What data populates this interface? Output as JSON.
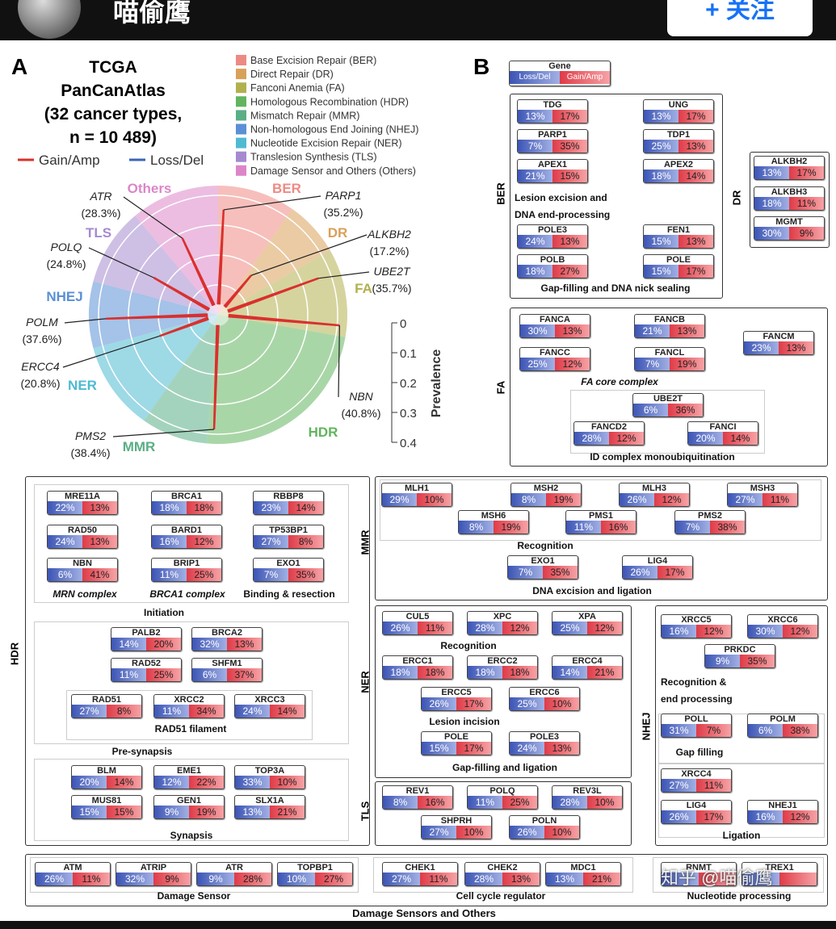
{
  "header": {
    "name": "喵偷鹰",
    "button": "+ 关注"
  },
  "panel_a": {
    "label": "A",
    "title": [
      "TCGA",
      "PanCanAtlas",
      "(32 cancer types,",
      "n = 10 489)"
    ],
    "lines": [
      {
        "name": "Gain/Amp",
        "color": "#d9302e"
      },
      {
        "name": "Loss/Del",
        "color": "#3b63b8"
      }
    ],
    "categories": [
      {
        "name": "Base Excision Repair (BER)",
        "short": "BER",
        "color": "#ee8a84"
      },
      {
        "name": "Direct Repair (DR)",
        "short": "DR",
        "color": "#d8a15a"
      },
      {
        "name": "Fanconi Anemia (FA)",
        "short": "FA",
        "color": "#b2b04e"
      },
      {
        "name": "Homologous Recombination (HDR)",
        "short": "HDR",
        "color": "#62b45e"
      },
      {
        "name": "Mismatch Repair (MMR)",
        "short": "MMR",
        "color": "#5aae86"
      },
      {
        "name": "Non-homologous End Joining (NHEJ)",
        "short": "NHEJ",
        "color": "#5b8fd6"
      },
      {
        "name": "Nucleotide Excision Repair (NER)",
        "short": "NER",
        "color": "#4fbad2"
      },
      {
        "name": "Translesion Synthesis (TLS)",
        "short": "TLS",
        "color": "#a58ad0"
      },
      {
        "name": "Damage Sensor and Others (Others)",
        "short": "Others",
        "color": "#dc86c8"
      }
    ],
    "axis_label": "Prevalence",
    "ylim": [
      0,
      0.4
    ],
    "yticks": [
      0,
      0.1,
      0.2,
      0.3,
      0.4
    ],
    "annotations": [
      {
        "gene": "ATR",
        "value": 0.283,
        "label": "(28.3%)"
      },
      {
        "gene": "PARP1",
        "value": 0.352,
        "label": "(35.2%)"
      },
      {
        "gene": "ALKBH2",
        "value": 0.172,
        "label": "(17.2%)"
      },
      {
        "gene": "UBE2T",
        "value": 0.357,
        "label": "(35.7%)"
      },
      {
        "gene": "POLQ",
        "value": 0.248,
        "label": "(24.8%)"
      },
      {
        "gene": "POLM",
        "value": 0.376,
        "label": "(37.6%)"
      },
      {
        "gene": "ERCC4",
        "value": 0.208,
        "label": "(20.8%)"
      },
      {
        "gene": "NBN",
        "value": 0.408,
        "label": "(40.8%)"
      },
      {
        "gene": "PMS2",
        "value": 0.384,
        "label": "(38.4%)"
      }
    ]
  },
  "panel_b": {
    "label": "B",
    "key": {
      "title": "Gene",
      "loss": "Loss/Del",
      "gain": "Gain/Amp"
    },
    "groups": {
      "ber": {
        "label": "BER",
        "genes": [
          [
            "TDG",
            "13%",
            "17%"
          ],
          [
            "UNG",
            "13%",
            "17%"
          ],
          [
            "PARP1",
            "7%",
            "35%"
          ],
          [
            "TDP1",
            "25%",
            "13%"
          ],
          [
            "APEX1",
            "21%",
            "15%"
          ],
          [
            "APEX2",
            "18%",
            "14%"
          ],
          [
            "POLE3",
            "24%",
            "13%"
          ],
          [
            "FEN1",
            "15%",
            "13%"
          ],
          [
            "POLB",
            "18%",
            "27%"
          ],
          [
            "POLE",
            "15%",
            "17%"
          ]
        ],
        "captions": [
          "Lesion excision and DNA end-processing",
          "Gap-filling and DNA nick sealing"
        ]
      },
      "dr": {
        "label": "DR",
        "genes": [
          [
            "ALKBH2",
            "13%",
            "17%"
          ],
          [
            "ALKBH3",
            "18%",
            "11%"
          ],
          [
            "MGMT",
            "30%",
            "9%"
          ]
        ]
      },
      "fa": {
        "label": "FA",
        "genes": [
          [
            "FANCA",
            "30%",
            "13%"
          ],
          [
            "FANCB",
            "21%",
            "13%"
          ],
          [
            "FANCM",
            "23%",
            "13%"
          ],
          [
            "FANCC",
            "25%",
            "12%"
          ],
          [
            "FANCL",
            "7%",
            "19%"
          ],
          [
            "UBE2T",
            "6%",
            "36%"
          ],
          [
            "FANCD2",
            "28%",
            "12%"
          ],
          [
            "FANCI",
            "20%",
            "14%"
          ]
        ],
        "captions": [
          "FA core complex",
          "ID complex monoubiquitination"
        ]
      },
      "hdr": {
        "label": "HDR",
        "genes": [
          [
            "MRE11A",
            "22%",
            "13%"
          ],
          [
            "BRCA1",
            "18%",
            "18%"
          ],
          [
            "RBBP8",
            "23%",
            "14%"
          ],
          [
            "RAD50",
            "24%",
            "13%"
          ],
          [
            "BARD1",
            "16%",
            "12%"
          ],
          [
            "TP53BP1",
            "27%",
            "8%"
          ],
          [
            "NBN",
            "6%",
            "41%"
          ],
          [
            "BRIP1",
            "11%",
            "25%"
          ],
          [
            "EXO1",
            "7%",
            "35%"
          ],
          [
            "PALB2",
            "14%",
            "20%"
          ],
          [
            "BRCA2",
            "32%",
            "13%"
          ],
          [
            "RAD52",
            "11%",
            "25%"
          ],
          [
            "SHFM1",
            "6%",
            "37%"
          ],
          [
            "RAD51",
            "27%",
            "8%"
          ],
          [
            "XRCC2",
            "11%",
            "34%"
          ],
          [
            "XRCC3",
            "24%",
            "14%"
          ],
          [
            "BLM",
            "20%",
            "14%"
          ],
          [
            "EME1",
            "12%",
            "22%"
          ],
          [
            "TOP3A",
            "33%",
            "10%"
          ],
          [
            "MUS81",
            "15%",
            "15%"
          ],
          [
            "GEN1",
            "9%",
            "19%"
          ],
          [
            "SLX1A",
            "13%",
            "21%"
          ]
        ],
        "captions": [
          "MRN complex",
          "BRCA1 complex",
          "Binding & resection",
          "Initiation",
          "RAD51 filament",
          "Pre-synapsis",
          "Synapsis"
        ]
      },
      "mmr": {
        "label": "MMR",
        "genes": [
          [
            "MLH1",
            "29%",
            "10%"
          ],
          [
            "MSH2",
            "8%",
            "19%"
          ],
          [
            "MLH3",
            "26%",
            "12%"
          ],
          [
            "MSH3",
            "27%",
            "11%"
          ],
          [
            "MSH6",
            "8%",
            "19%"
          ],
          [
            "PMS1",
            "11%",
            "16%"
          ],
          [
            "PMS2",
            "7%",
            "38%"
          ],
          [
            "EXO1",
            "7%",
            "35%"
          ],
          [
            "LIG4",
            "26%",
            "17%"
          ]
        ],
        "captions": [
          "Recognition",
          "DNA excision and ligation"
        ]
      },
      "ner": {
        "label": "NER",
        "genes": [
          [
            "CUL5",
            "26%",
            "11%"
          ],
          [
            "XPC",
            "28%",
            "12%"
          ],
          [
            "XPA",
            "25%",
            "12%"
          ],
          [
            "ERCC1",
            "18%",
            "18%"
          ],
          [
            "ERCC2",
            "18%",
            "18%"
          ],
          [
            "ERCC4",
            "14%",
            "21%"
          ],
          [
            "ERCC5",
            "26%",
            "17%"
          ],
          [
            "ERCC6",
            "25%",
            "10%"
          ],
          [
            "POLE",
            "15%",
            "17%"
          ],
          [
            "POLE3",
            "24%",
            "13%"
          ]
        ],
        "captions": [
          "Recognition",
          "Lesion incision",
          "Gap-filling and ligation"
        ]
      },
      "tls": {
        "label": "TLS",
        "genes": [
          [
            "REV1",
            "8%",
            "16%"
          ],
          [
            "POLQ",
            "11%",
            "25%"
          ],
          [
            "REV3L",
            "28%",
            "10%"
          ],
          [
            "SHPRH",
            "27%",
            "10%"
          ],
          [
            "POLN",
            "26%",
            "10%"
          ]
        ]
      },
      "nhej": {
        "label": "NHEJ",
        "genes": [
          [
            "XRCC5",
            "16%",
            "12%"
          ],
          [
            "XRCC6",
            "30%",
            "12%"
          ],
          [
            "PRKDC",
            "9%",
            "35%"
          ],
          [
            "POLL",
            "31%",
            "7%"
          ],
          [
            "POLM",
            "6%",
            "38%"
          ],
          [
            "XRCC4",
            "27%",
            "11%"
          ],
          [
            "LIG4",
            "26%",
            "17%"
          ],
          [
            "NHEJ1",
            "16%",
            "12%"
          ]
        ],
        "captions": [
          "Recognition & end processing",
          "Gap filling",
          "Ligation"
        ]
      },
      "others": {
        "label": "Damage Sensors and Others",
        "genes": [
          [
            "ATM",
            "26%",
            "11%"
          ],
          [
            "ATRIP",
            "32%",
            "9%"
          ],
          [
            "ATR",
            "9%",
            "28%"
          ],
          [
            "TOPBP1",
            "10%",
            "27%"
          ],
          [
            "CHEK1",
            "27%",
            "11%"
          ],
          [
            "CHEK2",
            "28%",
            "13%"
          ],
          [
            "MDC1",
            "13%",
            "21%"
          ],
          [
            "RNMT"
          ],
          [
            "TREX1"
          ]
        ],
        "captions": [
          "Damage Sensor",
          "Cell cycle regulator",
          "Nucleotide processing"
        ]
      }
    }
  },
  "watermark": "知乎 @喵偷鹰"
}
